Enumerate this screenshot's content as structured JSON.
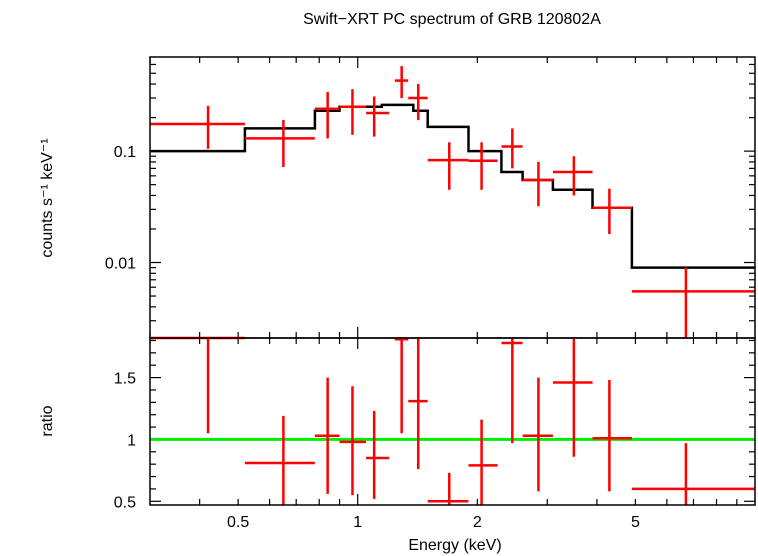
{
  "chart_data": [
    {
      "type": "line",
      "title": "Swift−XRT PC spectrum of GRB 120802A",
      "ylabel": "counts s⁻¹ keV⁻¹",
      "xscale": "log",
      "yscale": "log",
      "xlim": [
        0.3,
        10
      ],
      "ylim": [
        0.0021,
        0.7
      ],
      "y_ticks": [
        {
          "value": 0.01,
          "label": "0.01"
        },
        {
          "value": 0.1,
          "label": "0.1"
        }
      ],
      "model": {
        "color": "#000000",
        "steps": [
          {
            "x0": 0.3,
            "x1": 0.52,
            "y": 0.1
          },
          {
            "x0": 0.52,
            "x1": 0.78,
            "y": 0.16
          },
          {
            "x0": 0.78,
            "x1": 0.9,
            "y": 0.23
          },
          {
            "x0": 0.9,
            "x1": 1.15,
            "y": 0.25
          },
          {
            "x0": 1.15,
            "x1": 1.38,
            "y": 0.26
          },
          {
            "x0": 1.38,
            "x1": 1.5,
            "y": 0.23
          },
          {
            "x0": 1.5,
            "x1": 1.9,
            "y": 0.165
          },
          {
            "x0": 1.9,
            "x1": 2.3,
            "y": 0.1
          },
          {
            "x0": 2.3,
            "x1": 2.6,
            "y": 0.065
          },
          {
            "x0": 2.6,
            "x1": 3.1,
            "y": 0.055
          },
          {
            "x0": 3.1,
            "x1": 3.9,
            "y": 0.045
          },
          {
            "x0": 3.9,
            "x1": 4.9,
            "y": 0.031
          },
          {
            "x0": 4.9,
            "x1": 10,
            "y": 0.009
          }
        ]
      },
      "data_points": {
        "color": "#ff0000",
        "points": [
          {
            "x": 0.42,
            "xlo": 0.3,
            "xhi": 0.52,
            "y": 0.175,
            "ylo": 0.105,
            "yhi": 0.255
          },
          {
            "x": 0.65,
            "xlo": 0.52,
            "xhi": 0.78,
            "y": 0.13,
            "ylo": 0.072,
            "yhi": 0.19
          },
          {
            "x": 0.84,
            "xlo": 0.78,
            "xhi": 0.9,
            "y": 0.24,
            "ylo": 0.13,
            "yhi": 0.34
          },
          {
            "x": 0.97,
            "xlo": 0.9,
            "xhi": 1.05,
            "y": 0.25,
            "ylo": 0.14,
            "yhi": 0.36
          },
          {
            "x": 1.1,
            "xlo": 1.05,
            "xhi": 1.2,
            "y": 0.22,
            "ylo": 0.135,
            "yhi": 0.31
          },
          {
            "x": 1.29,
            "xlo": 1.24,
            "xhi": 1.34,
            "y": 0.43,
            "ylo": 0.3,
            "yhi": 0.58
          },
          {
            "x": 1.42,
            "xlo": 1.34,
            "xhi": 1.5,
            "y": 0.3,
            "ylo": 0.19,
            "yhi": 0.4
          },
          {
            "x": 1.7,
            "xlo": 1.5,
            "xhi": 1.9,
            "y": 0.083,
            "ylo": 0.045,
            "yhi": 0.12
          },
          {
            "x": 2.05,
            "xlo": 1.9,
            "xhi": 2.25,
            "y": 0.082,
            "ylo": 0.045,
            "yhi": 0.12
          },
          {
            "x": 2.45,
            "xlo": 2.3,
            "xhi": 2.6,
            "y": 0.11,
            "ylo": 0.07,
            "yhi": 0.16
          },
          {
            "x": 2.85,
            "xlo": 2.6,
            "xhi": 3.1,
            "y": 0.055,
            "ylo": 0.032,
            "yhi": 0.08
          },
          {
            "x": 3.5,
            "xlo": 3.1,
            "xhi": 3.9,
            "y": 0.065,
            "ylo": 0.04,
            "yhi": 0.09
          },
          {
            "x": 4.3,
            "xlo": 3.9,
            "xhi": 4.9,
            "y": 0.031,
            "ylo": 0.018,
            "yhi": 0.046
          },
          {
            "x": 6.7,
            "xlo": 4.9,
            "xhi": 10,
            "y": 0.0055,
            "ylo": 0.0021,
            "yhi": 0.009
          }
        ]
      }
    },
    {
      "type": "scatter",
      "xlabel": "Energy (keV)",
      "ylabel": "ratio",
      "xscale": "log",
      "xlim": [
        0.3,
        10
      ],
      "ylim": [
        0.47,
        1.82
      ],
      "x_ticks": [
        {
          "value": 0.5,
          "label": "0.5"
        },
        {
          "value": 1,
          "label": "1"
        },
        {
          "value": 2,
          "label": "2"
        },
        {
          "value": 5,
          "label": "5"
        }
      ],
      "y_ticks": [
        {
          "value": 0.5,
          "label": "0.5"
        },
        {
          "value": 1,
          "label": "1"
        },
        {
          "value": 1.5,
          "label": "1.5"
        }
      ],
      "reference_line": {
        "y": 1,
        "color": "#00ee00"
      },
      "data_points": {
        "color": "#ff0000",
        "points": [
          {
            "x": 0.42,
            "xlo": 0.3,
            "xhi": 0.52,
            "y": 1.82,
            "ylo": 1.05,
            "yhi": 1.82
          },
          {
            "x": 0.65,
            "xlo": 0.52,
            "xhi": 0.78,
            "y": 0.81,
            "ylo": 0.47,
            "yhi": 1.19
          },
          {
            "x": 0.84,
            "xlo": 0.78,
            "xhi": 0.9,
            "y": 1.03,
            "ylo": 0.56,
            "yhi": 1.5
          },
          {
            "x": 0.97,
            "xlo": 0.9,
            "xhi": 1.05,
            "y": 0.98,
            "ylo": 0.55,
            "yhi": 1.43
          },
          {
            "x": 1.1,
            "xlo": 1.05,
            "xhi": 1.2,
            "y": 0.85,
            "ylo": 0.52,
            "yhi": 1.23
          },
          {
            "x": 1.29,
            "xlo": 1.24,
            "xhi": 1.34,
            "y": 1.81,
            "ylo": 1.05,
            "yhi": 1.82
          },
          {
            "x": 1.42,
            "xlo": 1.34,
            "xhi": 1.5,
            "y": 1.31,
            "ylo": 0.76,
            "yhi": 1.82
          },
          {
            "x": 1.7,
            "xlo": 1.5,
            "xhi": 1.9,
            "y": 0.5,
            "ylo": 0.47,
            "yhi": 0.73
          },
          {
            "x": 2.05,
            "xlo": 1.9,
            "xhi": 2.25,
            "y": 0.79,
            "ylo": 0.47,
            "yhi": 1.16
          },
          {
            "x": 2.45,
            "xlo": 2.3,
            "xhi": 2.6,
            "y": 1.78,
            "ylo": 0.97,
            "yhi": 1.82
          },
          {
            "x": 2.85,
            "xlo": 2.6,
            "xhi": 3.1,
            "y": 1.03,
            "ylo": 0.58,
            "yhi": 1.5
          },
          {
            "x": 3.5,
            "xlo": 3.1,
            "xhi": 3.9,
            "y": 1.46,
            "ylo": 0.86,
            "yhi": 1.82
          },
          {
            "x": 4.3,
            "xlo": 3.9,
            "xhi": 4.9,
            "y": 1.01,
            "ylo": 0.58,
            "yhi": 1.48
          },
          {
            "x": 6.7,
            "xlo": 4.9,
            "xhi": 10,
            "y": 0.6,
            "ylo": 0.47,
            "yhi": 0.97
          }
        ]
      }
    }
  ]
}
